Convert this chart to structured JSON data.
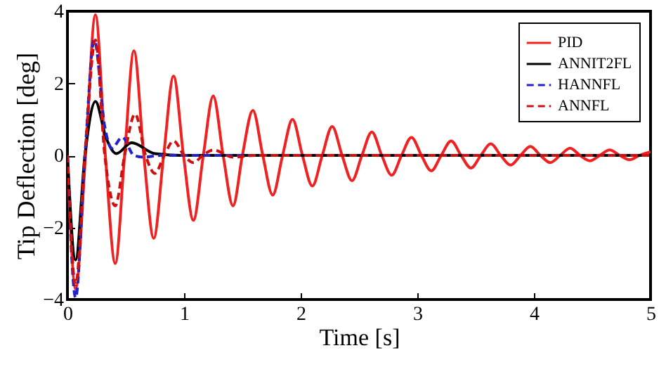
{
  "chart_data": {
    "type": "line",
    "xlabel": "Time [s]",
    "ylabel": "Tip Deflection [deg]",
    "xlim": [
      0,
      5
    ],
    "ylim": [
      -4,
      4
    ],
    "xticks": [
      0,
      1,
      2,
      3,
      4,
      5
    ],
    "yticks": [
      -4,
      -2,
      0,
      2,
      4
    ],
    "grid": false,
    "legend": "top right",
    "series": [
      {
        "name": "PID",
        "color": "#ee2222",
        "line_style": "solid",
        "x": [
          0,
          0.07,
          0.155,
          0.24,
          0.325,
          0.41,
          0.49,
          0.57,
          0.655,
          0.74,
          0.825,
          0.91,
          0.995,
          1.08,
          1.165,
          1.25,
          1.335,
          1.42,
          1.5,
          1.59,
          1.675,
          1.76,
          1.845,
          1.93,
          2.015,
          2.1,
          2.185,
          2.27,
          2.355,
          2.44,
          2.525,
          2.61,
          2.695,
          2.78,
          2.865,
          2.95,
          3.035,
          3.12,
          3.205,
          3.29,
          3.375,
          3.46,
          3.545,
          3.63,
          3.715,
          3.8,
          3.885,
          3.97,
          4.055,
          4.14,
          4.225,
          4.31,
          4.395,
          4.48,
          4.565,
          4.65,
          4.735,
          4.82,
          4.905,
          5
        ],
        "values": [
          0,
          -3.7,
          0,
          3.9,
          0,
          -3,
          0,
          2.9,
          0,
          -2.3,
          0,
          2.2,
          0,
          -1.8,
          0,
          1.65,
          0,
          -1.4,
          0,
          1.25,
          0,
          -1.1,
          0,
          1,
          0,
          -0.85,
          0,
          0.8,
          0,
          -0.7,
          0,
          0.65,
          0,
          -0.55,
          0,
          0.5,
          0,
          -0.43,
          0,
          0.4,
          0,
          -0.35,
          0,
          0.32,
          0,
          -0.27,
          0,
          0.25,
          0,
          -0.2,
          0,
          0.2,
          0,
          -0.15,
          0,
          0.15,
          0,
          -0.12,
          0,
          0.1
        ]
      },
      {
        "name": "ANNIT2FL",
        "color": "#000000",
        "line_style": "solid",
        "x": [
          0,
          0.07,
          0.15,
          0.24,
          0.33,
          0.42,
          0.55,
          0.75,
          1,
          5
        ],
        "values": [
          0,
          -2.9,
          0,
          1.5,
          0.5,
          0.05,
          0.35,
          0.05,
          0,
          0
        ]
      },
      {
        "name": "HANNFL",
        "color": "#2222cc",
        "line_style": "dashed",
        "x": [
          0,
          0.07,
          0.15,
          0.23,
          0.32,
          0.38,
          0.47,
          0.57,
          0.65,
          0.8,
          5
        ],
        "values": [
          0,
          -3.95,
          0,
          3.2,
          0.8,
          0.2,
          0.5,
          0,
          -0.05,
          0,
          0
        ]
      },
      {
        "name": "ANNFL",
        "color": "#cc1111",
        "line_style": "dashed",
        "x": [
          0,
          0.07,
          0.15,
          0.24,
          0.32,
          0.41,
          0.49,
          0.58,
          0.67,
          0.75,
          0.83,
          0.91,
          1,
          1.08,
          1.16,
          1.25,
          1.42,
          1.6,
          5
        ],
        "values": [
          0,
          -3.6,
          0,
          3.2,
          0,
          -1.4,
          0,
          1.15,
          0,
          -0.5,
          0,
          0.4,
          0,
          -0.2,
          0,
          0.15,
          -0.05,
          0,
          0
        ]
      }
    ]
  }
}
